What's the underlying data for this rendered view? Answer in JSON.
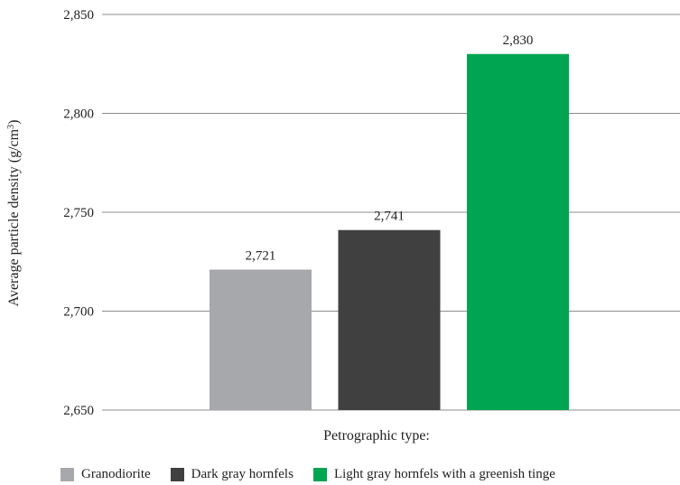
{
  "chart_data": {
    "type": "bar",
    "title": "",
    "xlabel": "Petrographic type:",
    "ylabel_main": "Average particle density (g/cm",
    "ylabel_sup": "3",
    "ylabel_end": ")",
    "ylim": [
      2650,
      2850
    ],
    "yticks": [
      "2,650",
      "2,700",
      "2,750",
      "2,800",
      "2,850"
    ],
    "ytick_values": [
      2650,
      2700,
      2750,
      2800,
      2850
    ],
    "grid": true,
    "legend_position": "bottom",
    "series": [
      {
        "name": "Granodiorite",
        "value": 2721,
        "label": "2,721",
        "color": "#a7a8ab"
      },
      {
        "name": "Dark gray hornfels",
        "value": 2741,
        "label": "2,741",
        "color": "#404041"
      },
      {
        "name": "Light gray hornfels with a greenish tinge",
        "value": 2830,
        "label": "2,830",
        "color": "#00a551"
      }
    ]
  }
}
